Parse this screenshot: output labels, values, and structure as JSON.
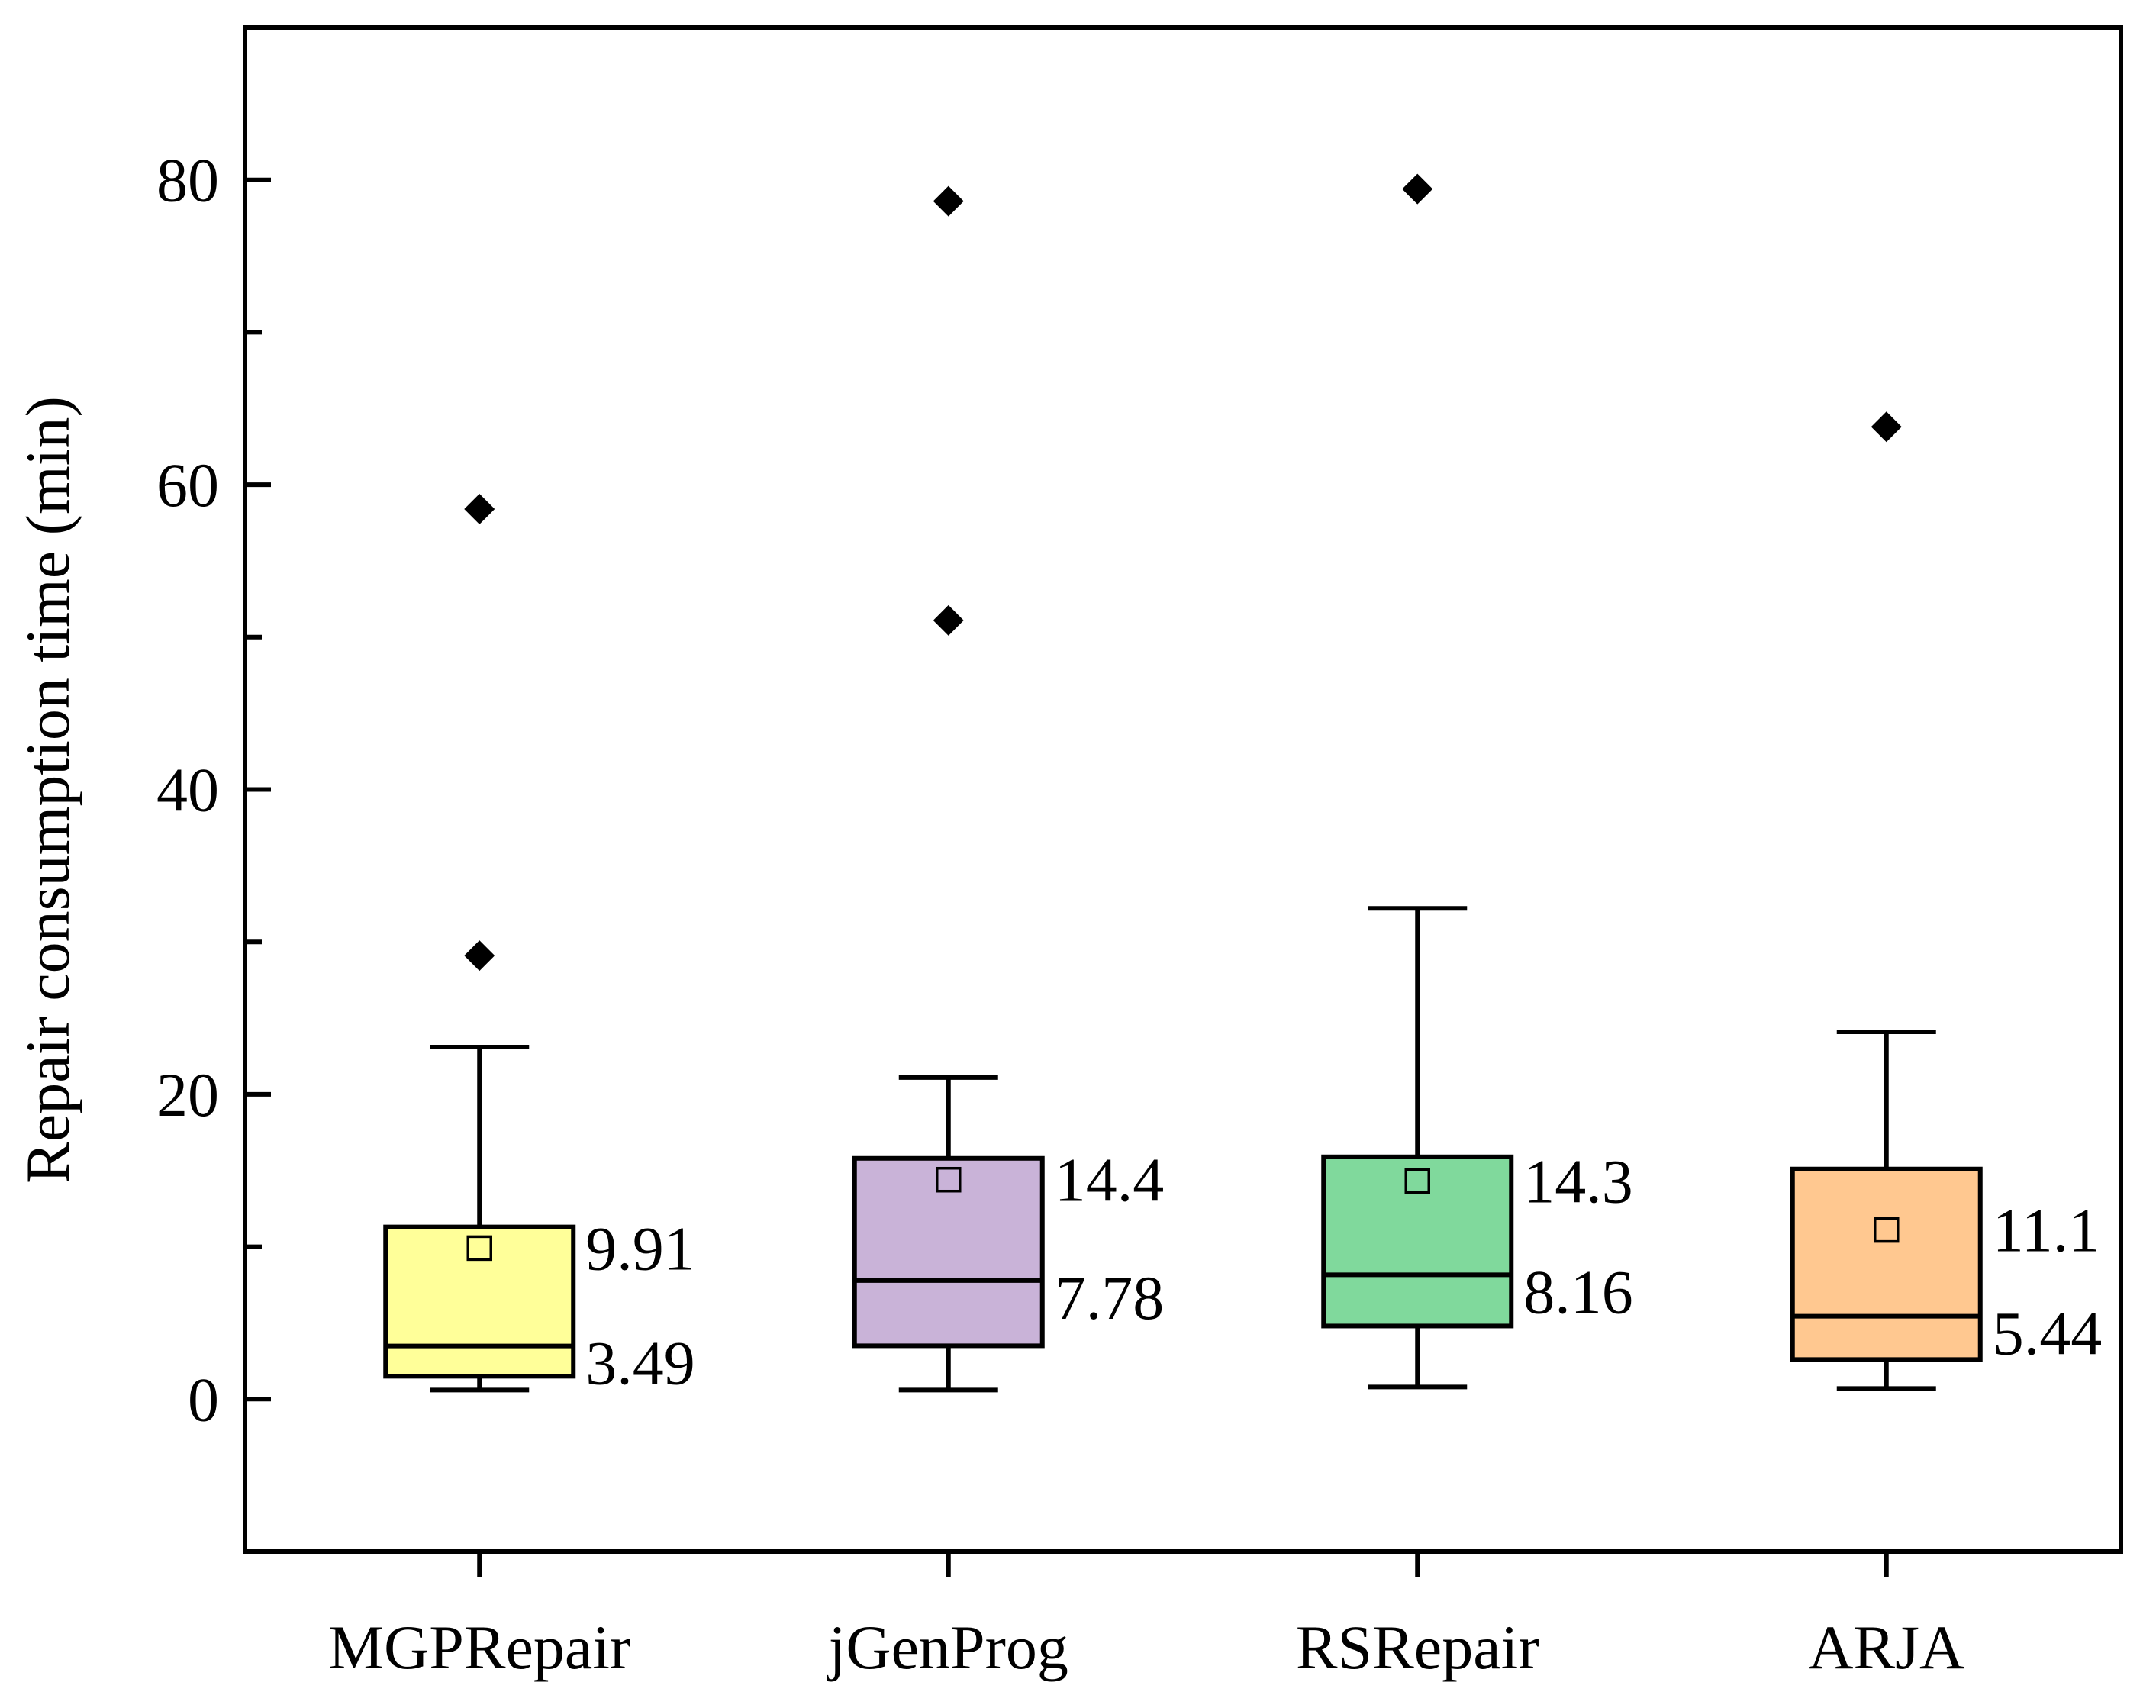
{
  "chart_data": {
    "type": "box",
    "title": "",
    "xlabel": "",
    "ylabel": "Repair consumption time (min)",
    "ylim": [
      -10,
      90
    ],
    "yticks": [
      0,
      20,
      40,
      60,
      80
    ],
    "grid": false,
    "categories": [
      "MGPRepair",
      "jGenProg",
      "RSRepair",
      "ARJA"
    ],
    "series": [
      {
        "name": "MGPRepair",
        "color": "#FFFF99",
        "whisker_low": 0.6,
        "q1": 1.5,
        "median": 3.49,
        "q3": 11.3,
        "whisker_high": 23.1,
        "mean": 9.91,
        "outliers": [
          29.1,
          58.4
        ],
        "median_label": "3.49",
        "mean_label": "9.91"
      },
      {
        "name": "jGenProg",
        "color": "#C9B3D8",
        "whisker_low": 0.6,
        "q1": 3.5,
        "median": 7.78,
        "q3": 15.8,
        "whisker_high": 21.1,
        "mean": 14.4,
        "outliers": [
          51.1,
          78.6
        ],
        "median_label": "7.78",
        "mean_label": "14.4"
      },
      {
        "name": "RSRepair",
        "color": "#80D99C",
        "whisker_low": 0.8,
        "q1": 4.8,
        "median": 8.16,
        "q3": 15.9,
        "whisker_high": 32.2,
        "mean": 14.3,
        "outliers": [
          79.4
        ],
        "median_label": "8.16",
        "mean_label": "14.3"
      },
      {
        "name": "ARJA",
        "color": "#FFC890",
        "whisker_low": 0.7,
        "q1": 2.6,
        "median": 5.44,
        "q3": 15.1,
        "whisker_high": 24.1,
        "mean": 11.1,
        "outliers": [
          63.8
        ],
        "median_label": "5.44",
        "mean_label": "11.1"
      }
    ]
  }
}
